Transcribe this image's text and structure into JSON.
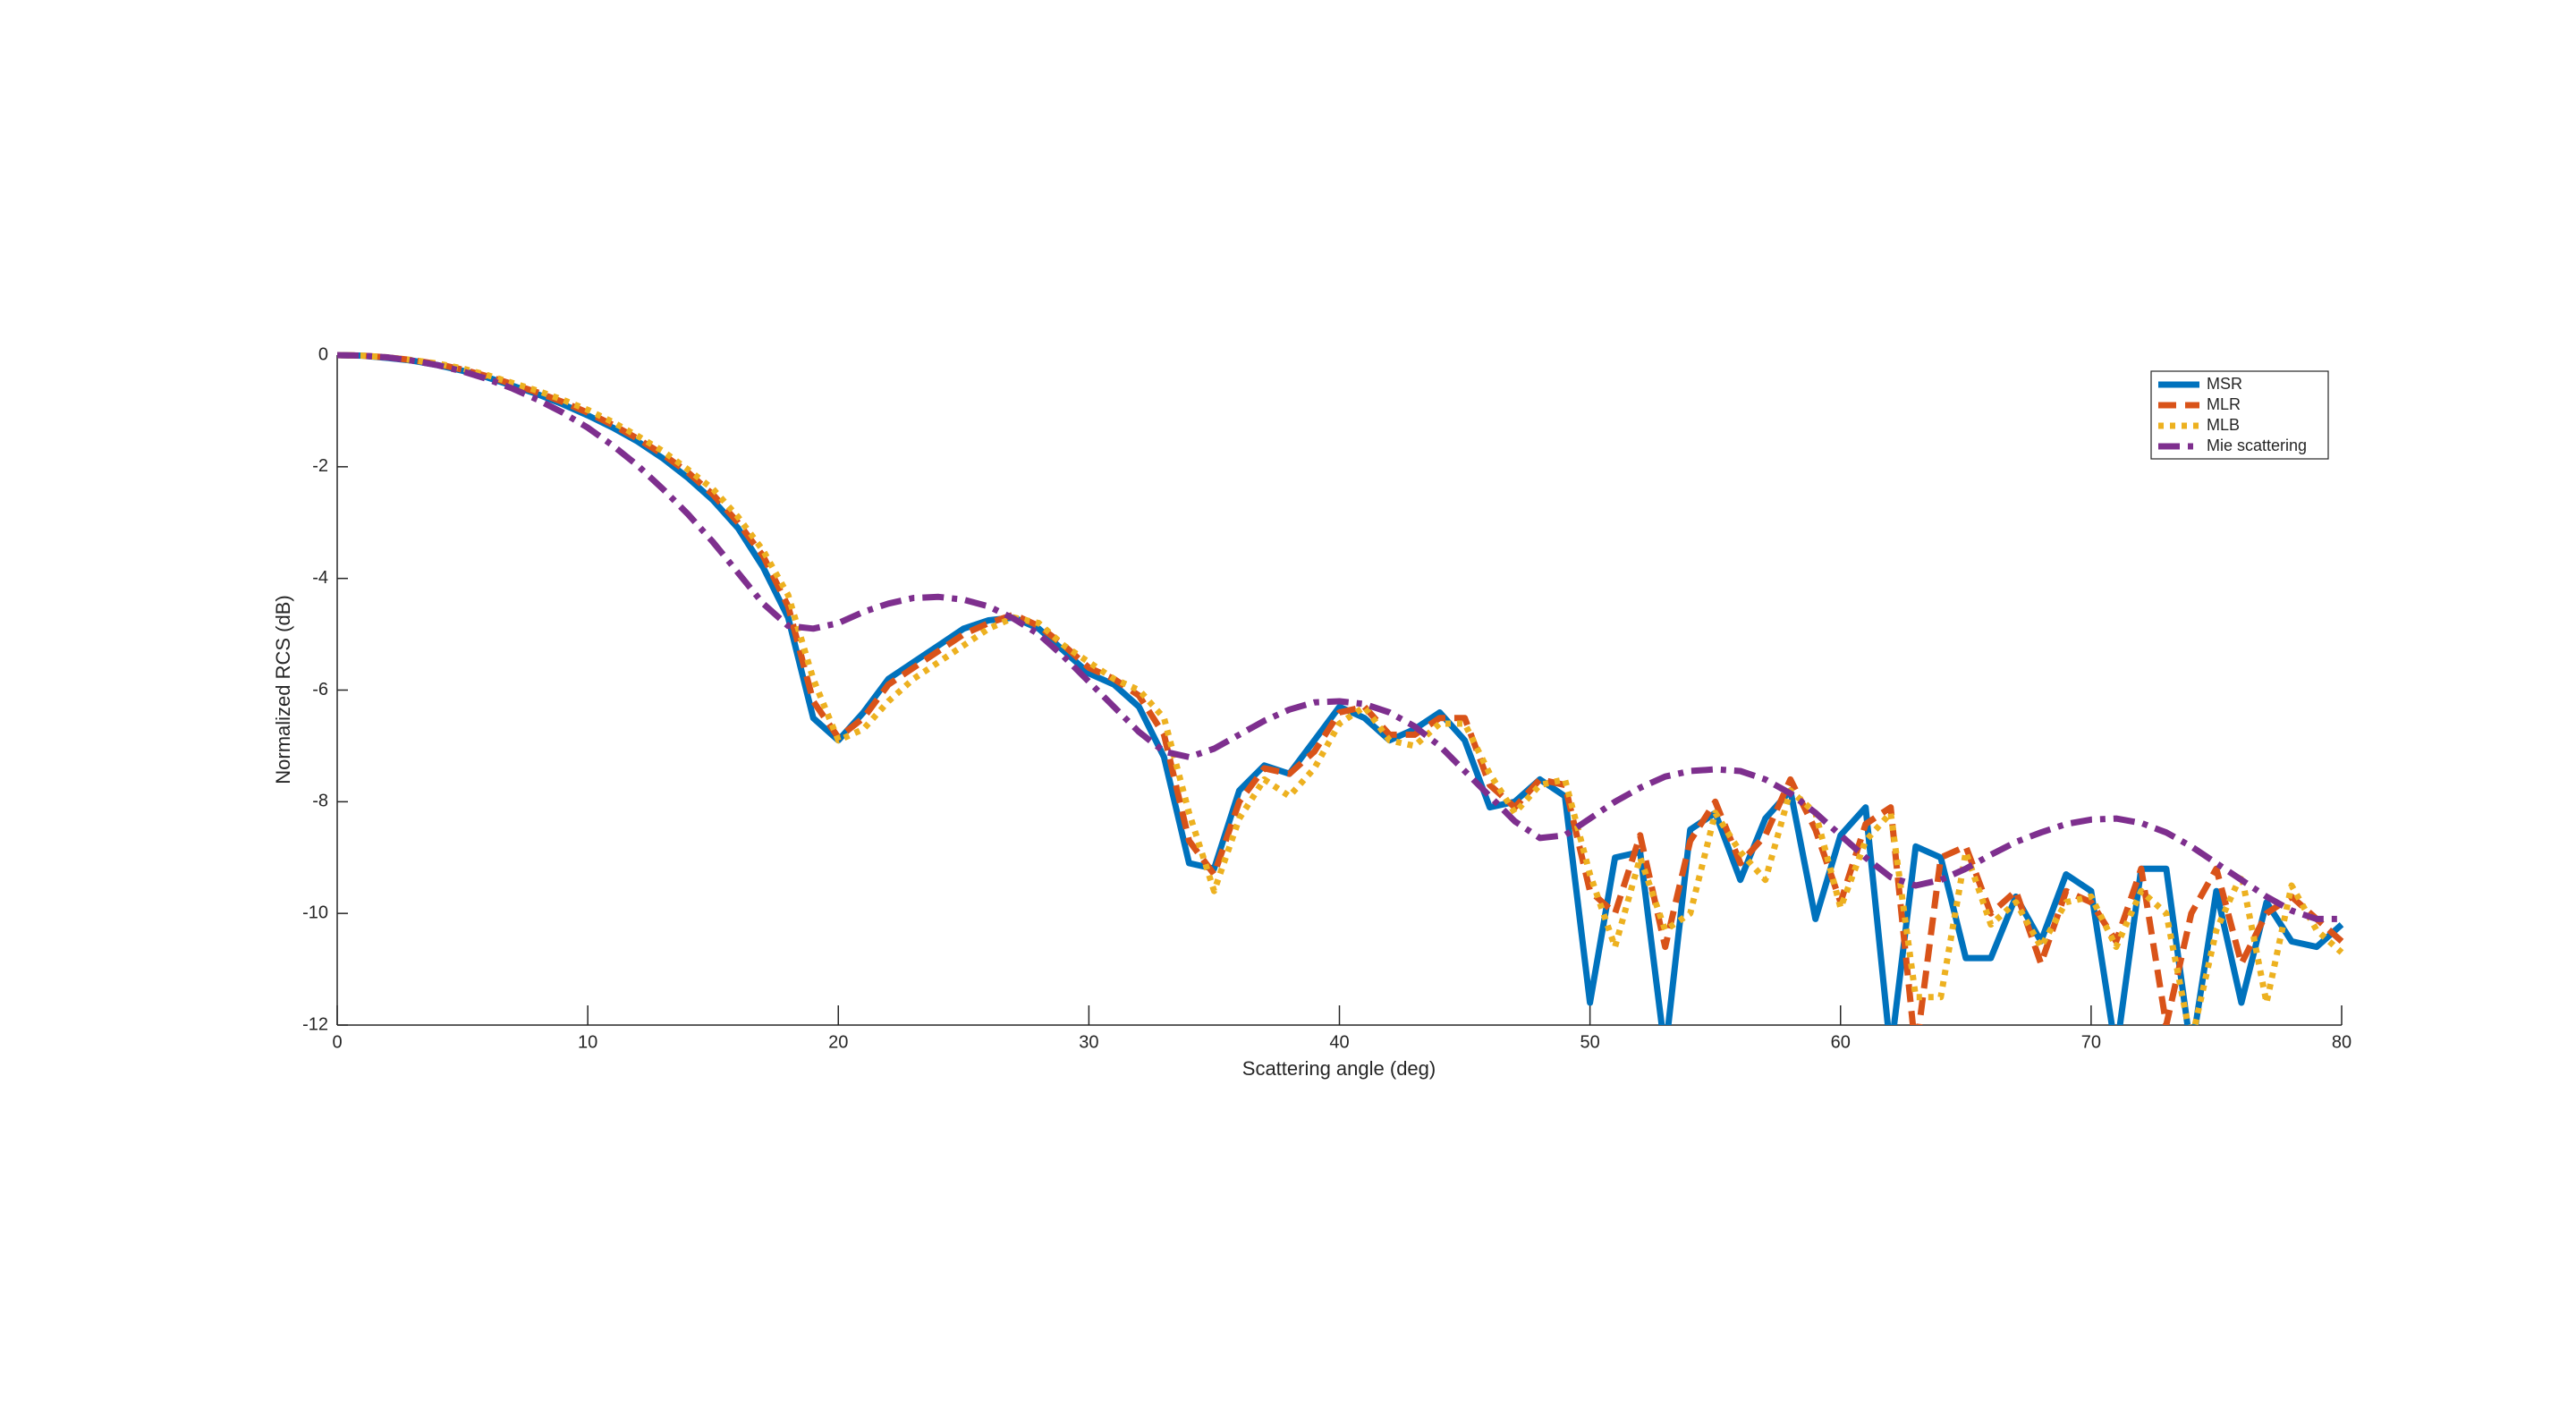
{
  "chart_data": {
    "type": "line",
    "xlabel": "Scattering angle (deg)",
    "ylabel": "Normalized RCS (dB)",
    "x": [
      0,
      1,
      2,
      3,
      4,
      5,
      6,
      7,
      8,
      9,
      10,
      11,
      12,
      13,
      14,
      15,
      16,
      17,
      18,
      19,
      20,
      21,
      22,
      23,
      24,
      25,
      26,
      27,
      28,
      29,
      30,
      31,
      32,
      33,
      34,
      35,
      36,
      37,
      38,
      39,
      40,
      41,
      42,
      43,
      44,
      45,
      46,
      47,
      48,
      49,
      50,
      51,
      52,
      53,
      54,
      55,
      56,
      57,
      58,
      59,
      60,
      61,
      62,
      63,
      64,
      65,
      66,
      67,
      68,
      69,
      70,
      71,
      72,
      73,
      74,
      75,
      76,
      77,
      78,
      79,
      80
    ],
    "series": [
      {
        "name": "MSR",
        "color": "#0072BD",
        "style": "solid",
        "values": [
          0,
          -0.01,
          -0.05,
          -0.1,
          -0.18,
          -0.28,
          -0.4,
          -0.55,
          -0.7,
          -0.88,
          -1.08,
          -1.3,
          -1.55,
          -1.85,
          -2.2,
          -2.6,
          -3.1,
          -3.8,
          -4.7,
          -6.5,
          -6.9,
          -6.4,
          -5.8,
          -5.5,
          -5.2,
          -4.9,
          -4.75,
          -4.7,
          -4.9,
          -5.3,
          -5.7,
          -5.9,
          -6.3,
          -7.2,
          -9.1,
          -9.2,
          -7.8,
          -7.35,
          -7.5,
          -6.9,
          -6.3,
          -6.5,
          -6.9,
          -6.7,
          -6.4,
          -6.9,
          -8.1,
          -8.0,
          -7.6,
          -7.9,
          -11.6,
          -9.0,
          -8.9,
          -12.5,
          -8.5,
          -8.2,
          -9.4,
          -8.3,
          -7.8,
          -10.1,
          -8.6,
          -8.1,
          -12.5,
          -8.8,
          -9.0,
          -10.8,
          -10.8,
          -9.7,
          -10.5,
          -9.3,
          -9.6,
          -12.5,
          -9.2,
          -9.2,
          -12.5,
          -9.6,
          -11.6,
          -9.8,
          -10.5,
          -10.6,
          -10.2
        ]
      },
      {
        "name": "MLR",
        "color": "#D95319",
        "style": "dashed",
        "values": [
          0,
          -0.01,
          -0.04,
          -0.09,
          -0.16,
          -0.26,
          -0.38,
          -0.52,
          -0.67,
          -0.84,
          -1.03,
          -1.25,
          -1.5,
          -1.78,
          -2.1,
          -2.5,
          -3.0,
          -3.6,
          -4.5,
          -6.2,
          -6.85,
          -6.5,
          -5.9,
          -5.6,
          -5.3,
          -5.0,
          -4.8,
          -4.65,
          -4.85,
          -5.2,
          -5.6,
          -5.8,
          -6.1,
          -6.8,
          -8.7,
          -9.3,
          -8.0,
          -7.4,
          -7.5,
          -7.1,
          -6.4,
          -6.3,
          -6.8,
          -6.8,
          -6.5,
          -6.5,
          -7.7,
          -8.1,
          -7.6,
          -7.7,
          -9.6,
          -10.0,
          -8.6,
          -10.6,
          -8.7,
          -8.0,
          -9.1,
          -8.6,
          -7.6,
          -8.5,
          -9.8,
          -8.4,
          -8.1,
          -12.5,
          -9.0,
          -8.8,
          -10.0,
          -9.6,
          -10.9,
          -9.6,
          -9.8,
          -10.5,
          -9.2,
          -12.0,
          -10.0,
          -9.2,
          -10.9,
          -10.0,
          -9.7,
          -10.1,
          -10.5
        ]
      },
      {
        "name": "MLB",
        "color": "#EDB120",
        "style": "dotted",
        "values": [
          0,
          -0.01,
          -0.04,
          -0.09,
          -0.15,
          -0.24,
          -0.36,
          -0.5,
          -0.64,
          -0.8,
          -0.98,
          -1.2,
          -1.45,
          -1.72,
          -2.05,
          -2.4,
          -2.9,
          -3.5,
          -4.3,
          -5.8,
          -6.9,
          -6.7,
          -6.2,
          -5.8,
          -5.5,
          -5.2,
          -4.9,
          -4.7,
          -4.8,
          -5.2,
          -5.5,
          -5.8,
          -6.0,
          -6.5,
          -8.2,
          -9.6,
          -8.3,
          -7.6,
          -7.9,
          -7.4,
          -6.6,
          -6.3,
          -6.9,
          -7.0,
          -6.6,
          -6.6,
          -7.5,
          -8.2,
          -7.7,
          -7.6,
          -9.3,
          -10.6,
          -9.0,
          -10.3,
          -10.0,
          -8.2,
          -8.9,
          -9.4,
          -7.8,
          -8.2,
          -9.9,
          -8.7,
          -8.2,
          -11.5,
          -11.5,
          -8.9,
          -10.2,
          -9.8,
          -10.6,
          -9.8,
          -9.7,
          -10.6,
          -9.6,
          -10.0,
          -12.3,
          -10.3,
          -9.3,
          -11.6,
          -9.5,
          -10.3,
          -10.7
        ]
      },
      {
        "name": "Mie scattering",
        "color": "#7E2F8E",
        "style": "dashdot",
        "values": [
          0,
          -0.01,
          -0.04,
          -0.1,
          -0.18,
          -0.29,
          -0.43,
          -0.6,
          -0.8,
          -1.03,
          -1.3,
          -1.62,
          -1.98,
          -2.4,
          -2.85,
          -3.35,
          -3.9,
          -4.45,
          -4.85,
          -4.9,
          -4.8,
          -4.6,
          -4.45,
          -4.35,
          -4.33,
          -4.38,
          -4.5,
          -4.72,
          -5.0,
          -5.4,
          -5.85,
          -6.3,
          -6.75,
          -7.1,
          -7.2,
          -7.05,
          -6.8,
          -6.55,
          -6.35,
          -6.22,
          -6.2,
          -6.25,
          -6.4,
          -6.65,
          -7.0,
          -7.45,
          -7.9,
          -8.35,
          -8.65,
          -8.6,
          -8.3,
          -8.0,
          -7.75,
          -7.55,
          -7.45,
          -7.42,
          -7.45,
          -7.6,
          -7.85,
          -8.2,
          -8.6,
          -9.0,
          -9.35,
          -9.5,
          -9.4,
          -9.2,
          -8.95,
          -8.72,
          -8.55,
          -8.4,
          -8.32,
          -8.3,
          -8.38,
          -8.55,
          -8.8,
          -9.1,
          -9.4,
          -9.7,
          -9.95,
          -10.1,
          -10.1
        ]
      }
    ],
    "xlim": [
      0,
      80
    ],
    "xticks": [
      0,
      10,
      20,
      30,
      40,
      50,
      60,
      70,
      80
    ],
    "ylim": [
      -12,
      0
    ],
    "yticks": [
      -12,
      -10,
      -8,
      -6,
      -4,
      -2,
      0
    ],
    "grid": false,
    "legend": "northeast"
  }
}
